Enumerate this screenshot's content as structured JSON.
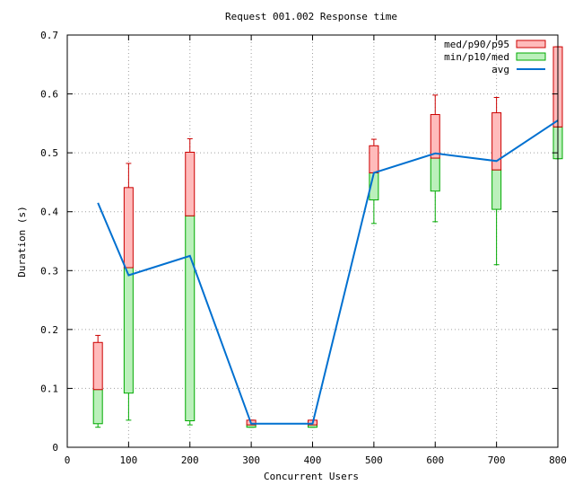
{
  "chart_data": {
    "type": "box",
    "title": "Request 001.002 Response time",
    "xlabel": "Concurrent Users",
    "ylabel": "Duration (s)",
    "xlim": [
      0,
      800
    ],
    "ylim": [
      0,
      0.7
    ],
    "x_ticks": [
      0,
      100,
      200,
      300,
      400,
      500,
      600,
      700,
      800
    ],
    "y_ticks": [
      0,
      0.1,
      0.2,
      0.3,
      0.4,
      0.5,
      0.6,
      0.7
    ],
    "x_tick_labels": [
      "0",
      "100",
      "200",
      "300",
      "400",
      "500",
      "600",
      "700",
      "800"
    ],
    "y_tick_labels": [
      "0",
      "0.1",
      "0.2",
      "0.3",
      "0.4",
      "0.5",
      "0.6",
      "0.7"
    ],
    "grid": true,
    "legend": [
      {
        "key": "upper",
        "label": "med/p90/p95",
        "color": "#cc0000",
        "fill": "#ffbbbb"
      },
      {
        "key": "lower",
        "label": "min/p10/med",
        "color": "#00aa00",
        "fill": "#bbf0bb"
      },
      {
        "key": "avg",
        "label": "avg",
        "color": "#0070d0"
      }
    ],
    "legend_position": "top-right",
    "series": [
      {
        "x": 50,
        "min": 0.034,
        "p10": 0.04,
        "med": 0.098,
        "p90": 0.178,
        "p95": 0.19,
        "avg": 0.415
      },
      {
        "x": 100,
        "min": 0.046,
        "p10": 0.092,
        "med": 0.305,
        "p90": 0.441,
        "p95": 0.482,
        "avg": 0.292
      },
      {
        "x": 200,
        "min": 0.038,
        "p10": 0.045,
        "med": 0.393,
        "p90": 0.501,
        "p95": 0.524,
        "avg": 0.325
      },
      {
        "x": 300,
        "min": 0.034,
        "p10": 0.034,
        "med": 0.038,
        "p90": 0.046,
        "p95": 0.046,
        "avg": 0.04
      },
      {
        "x": 400,
        "min": 0.034,
        "p10": 0.034,
        "med": 0.038,
        "p90": 0.046,
        "p95": 0.046,
        "avg": 0.04
      },
      {
        "x": 500,
        "min": 0.38,
        "p10": 0.42,
        "med": 0.466,
        "p90": 0.512,
        "p95": 0.523,
        "avg": 0.466
      },
      {
        "x": 600,
        "min": 0.383,
        "p10": 0.435,
        "med": 0.491,
        "p90": 0.565,
        "p95": 0.598,
        "avg": 0.499
      },
      {
        "x": 700,
        "min": 0.31,
        "p10": 0.404,
        "med": 0.471,
        "p90": 0.568,
        "p95": 0.594,
        "avg": 0.486
      },
      {
        "x": 800,
        "min": 0.49,
        "p10": 0.49,
        "med": 0.544,
        "p90": 0.68,
        "p95": 0.68,
        "avg": 0.555
      }
    ]
  }
}
